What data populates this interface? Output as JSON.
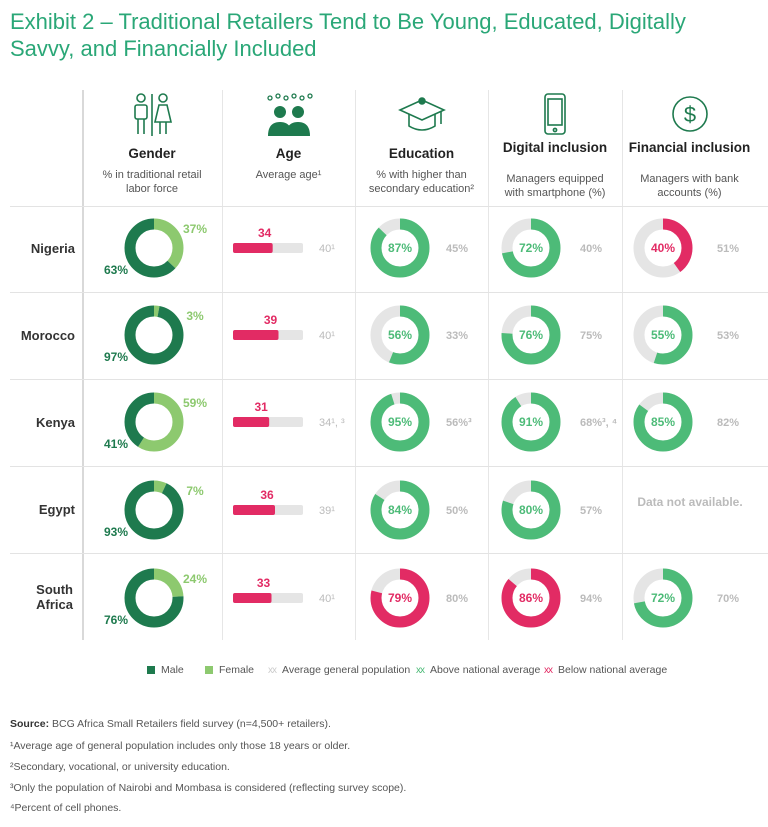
{
  "title": "Exhibit 2 – Traditional Retailers Tend to Be Young, Educated, Digitally Savvy, and Financially Included",
  "colors": {
    "male": "#1e7a4e",
    "female": "#8dc96f",
    "above": "#4dbb78",
    "below": "#e22b64",
    "avg": "#cccccc",
    "track": "#e5e5e5"
  },
  "columns": [
    {
      "key": "gender",
      "title": "Gender",
      "subtitle": "% in traditional retail labor force",
      "icon": "gender-icon"
    },
    {
      "key": "age",
      "title": "Age",
      "subtitle": "Average age¹",
      "icon": "people-icon"
    },
    {
      "key": "education",
      "title": "Education",
      "subtitle": "% with higher than secondary education²",
      "icon": "graduation-cap-icon"
    },
    {
      "key": "digital",
      "title": "Digital inclusion",
      "subtitle": "Managers equipped with smartphone (%)",
      "icon": "smartphone-icon"
    },
    {
      "key": "financial",
      "title": "Financial inclusion",
      "subtitle": "Managers with bank accounts (%)",
      "icon": "dollar-icon"
    }
  ],
  "chart_data": {
    "type": "table",
    "title": "Exhibit 2 – Traditional Retailers Tend to Be Young, Educated, Digitally Savvy, and Financially Included",
    "rows": [
      {
        "country": "Nigeria",
        "male": 63,
        "female": 37,
        "male_label": "63%",
        "female_label": "37%",
        "age": 34,
        "age_label": "34",
        "age_avg": 40,
        "age_avg_label": "40¹",
        "education": 87,
        "education_label": "87%",
        "education_avg_label": "45%",
        "education_status": "above",
        "digital": 72,
        "digital_label": "72%",
        "digital_avg_label": "40%",
        "digital_status": "above",
        "financial": 40,
        "financial_label": "40%",
        "financial_avg_label": "51%",
        "financial_status": "below"
      },
      {
        "country": "Morocco",
        "male": 97,
        "female": 3,
        "male_label": "97%",
        "female_label": "3%",
        "age": 39,
        "age_label": "39",
        "age_avg": 40,
        "age_avg_label": "40¹",
        "education": 56,
        "education_label": "56%",
        "education_avg_label": "33%",
        "education_status": "above",
        "digital": 76,
        "digital_label": "76%",
        "digital_avg_label": "75%",
        "digital_status": "above",
        "financial": 55,
        "financial_label": "55%",
        "financial_avg_label": "53%",
        "financial_status": "above"
      },
      {
        "country": "Kenya",
        "male": 41,
        "female": 59,
        "male_label": "41%",
        "female_label": "59%",
        "age": 31,
        "age_label": "31",
        "age_avg": 34,
        "age_avg_label": "34¹, ³",
        "education": 95,
        "education_label": "95%",
        "education_avg_label": "56%³",
        "education_status": "above",
        "digital": 91,
        "digital_label": "91%",
        "digital_avg_label": "68%³, ⁴",
        "digital_status": "above",
        "financial": 85,
        "financial_label": "85%",
        "financial_avg_label": "82%",
        "financial_status": "above"
      },
      {
        "country": "Egypt",
        "male": 93,
        "female": 7,
        "male_label": "93%",
        "female_label": "7%",
        "age": 36,
        "age_label": "36",
        "age_avg": 39,
        "age_avg_label": "39¹",
        "education": 84,
        "education_label": "84%",
        "education_avg_label": "50%",
        "education_status": "above",
        "digital": 80,
        "digital_label": "80%",
        "digital_avg_label": "57%",
        "digital_status": "above",
        "financial": null,
        "financial_label": "",
        "financial_avg_label": "",
        "financial_status": "na"
      },
      {
        "country": "South Africa",
        "male": 76,
        "female": 24,
        "male_label": "76%",
        "female_label": "24%",
        "age": 33,
        "age_label": "33",
        "age_avg": 40,
        "age_avg_label": "40¹",
        "education": 79,
        "education_label": "79%",
        "education_avg_label": "80%",
        "education_status": "below",
        "digital": 86,
        "digital_label": "86%",
        "digital_avg_label": "94%",
        "digital_status": "below",
        "financial": 72,
        "financial_label": "72%",
        "financial_avg_label": "70%",
        "financial_status": "above"
      }
    ],
    "age_axis_max": 60
  },
  "not_available": "Data not available.",
  "legend": {
    "male": "Male",
    "female": "Female",
    "xx": "xx",
    "avg": "Average general population",
    "above": "Above national average",
    "below": "Below national average"
  },
  "footnotes": {
    "source_label": "Source:",
    "source_text": " BCG Africa Small Retailers field survey (n=4,500+ retailers).",
    "fn1": "¹Average age of general population includes only those 18 years or older.",
    "fn2": "²Secondary, vocational, or university education.",
    "fn3": "³Only the population of Nairobi and Mombasa is considered (reflecting survey scope).",
    "fn4": "⁴Percent of cell phones."
  }
}
